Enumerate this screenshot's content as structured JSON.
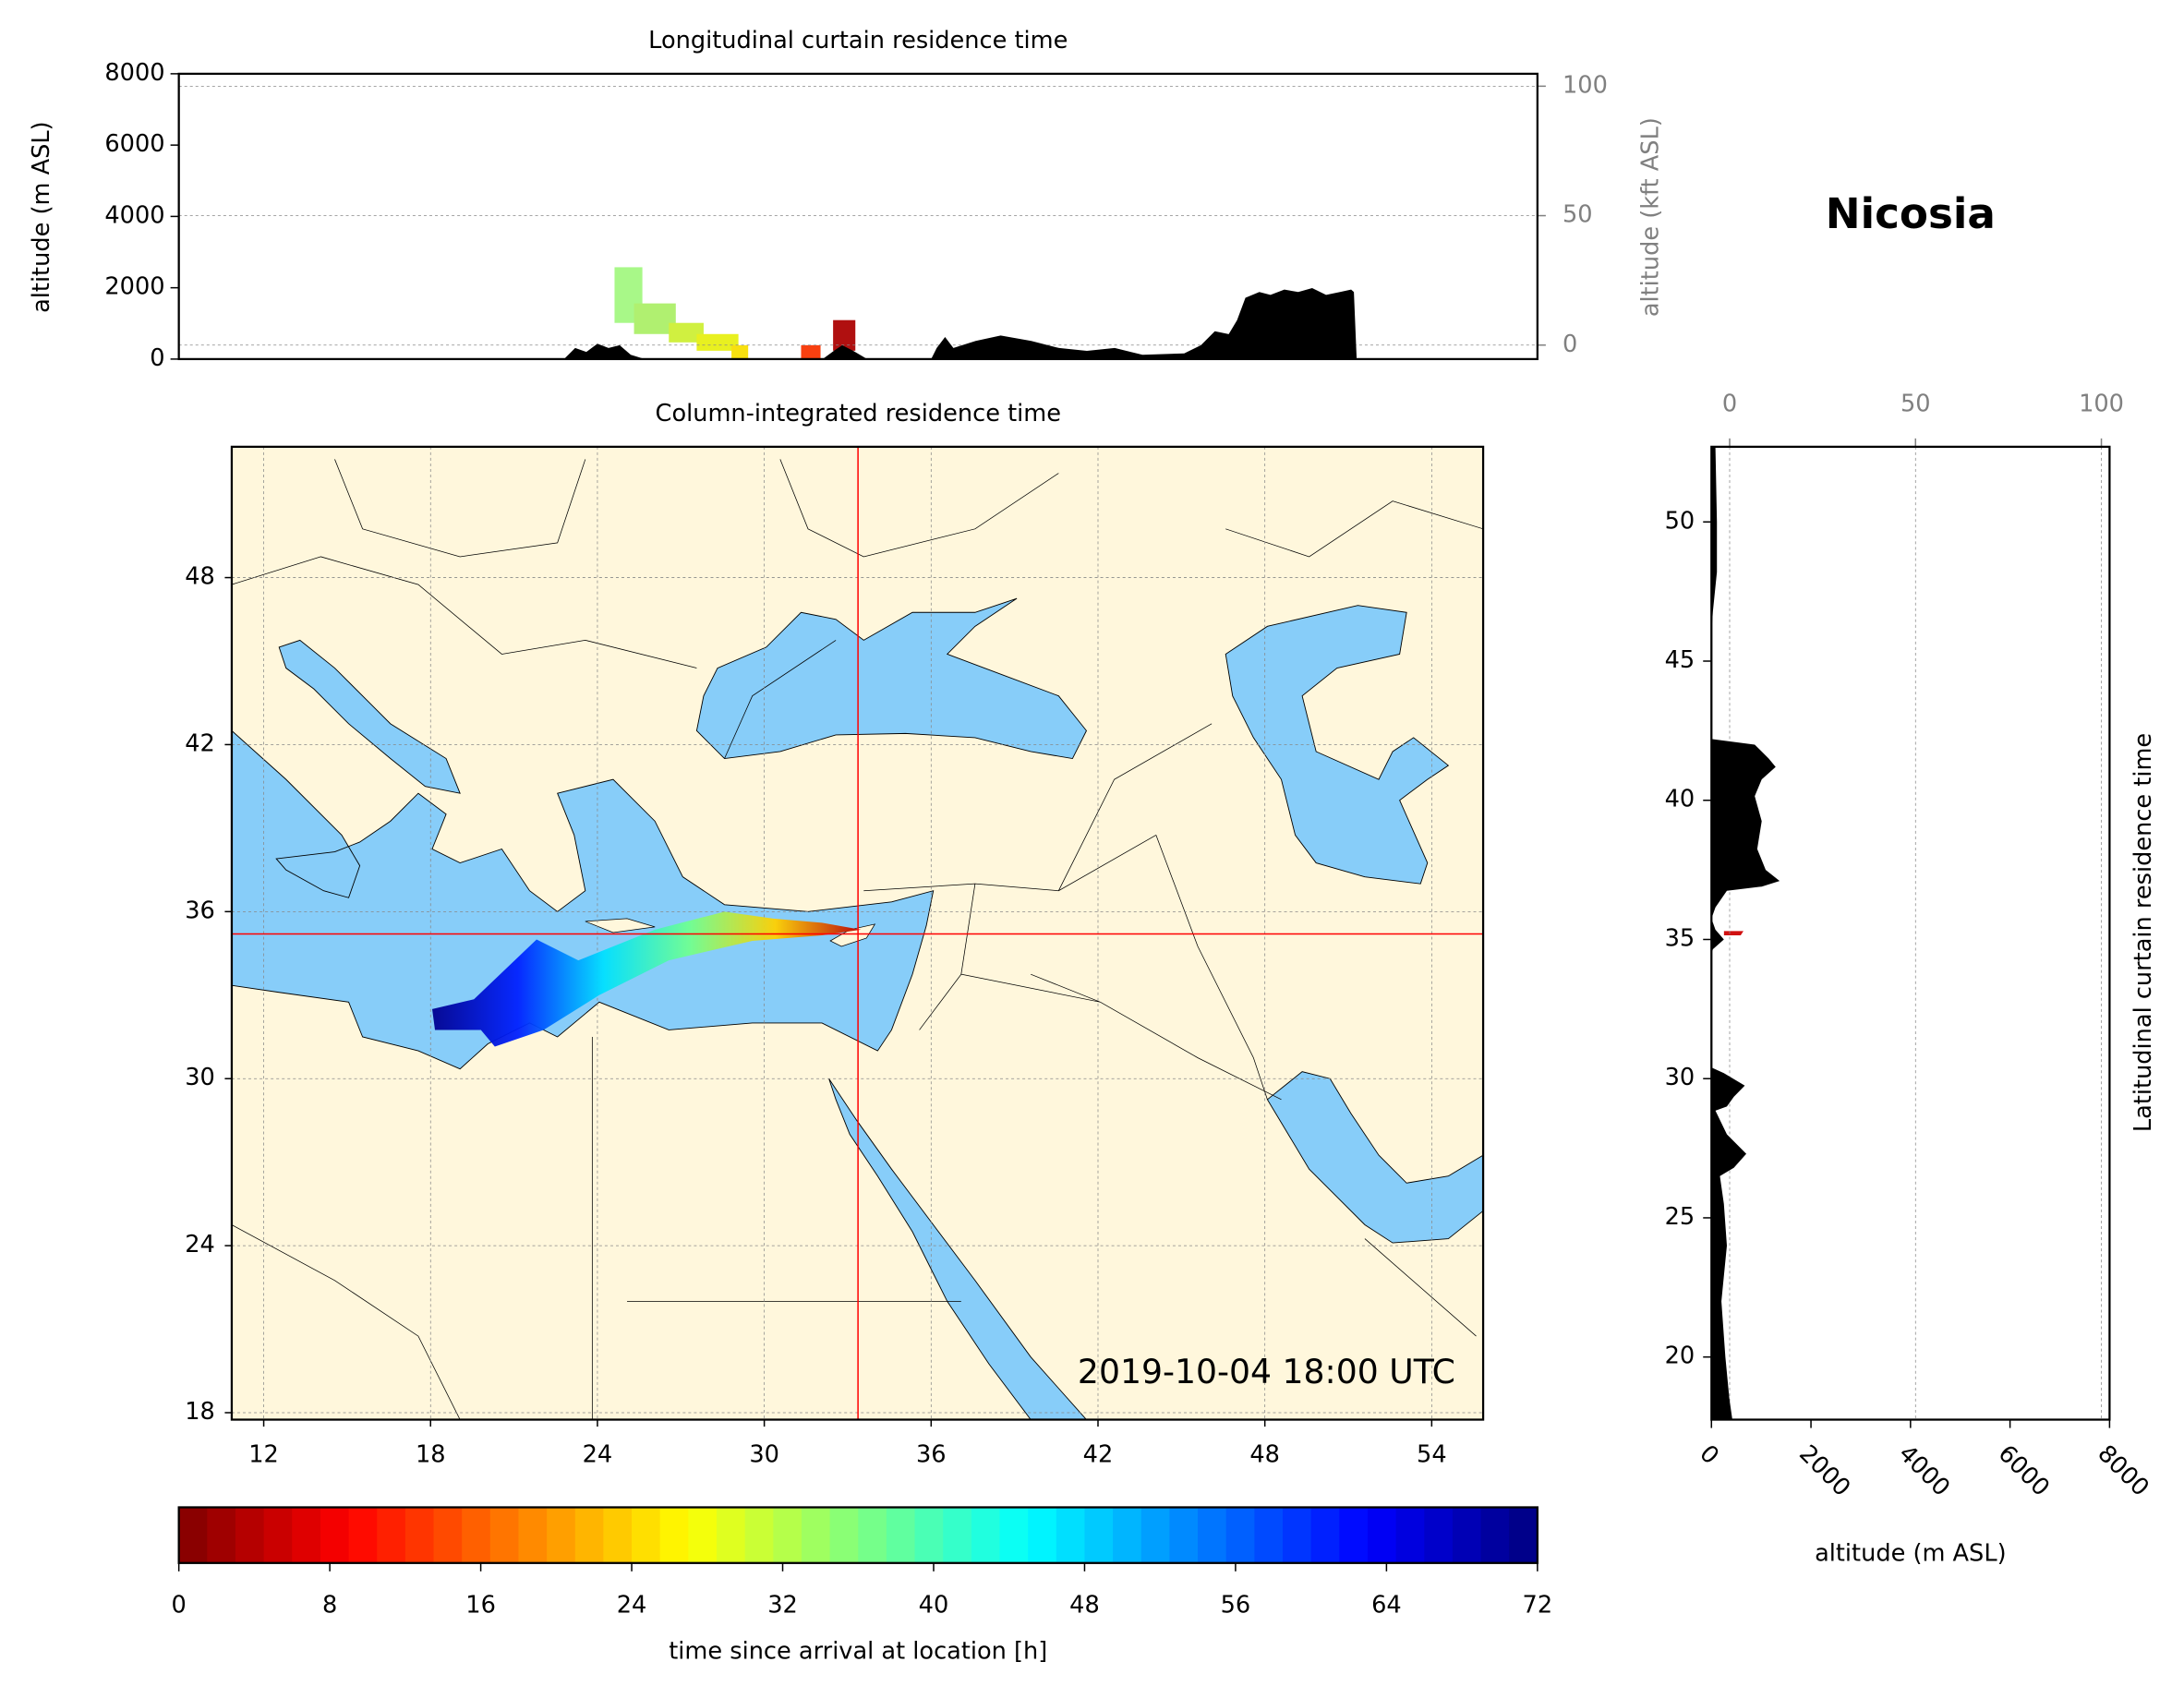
{
  "chart_data": [
    {
      "type": "area",
      "title": "Longitudinal curtain residence time",
      "ylabel": "altitude (m ASL)",
      "y2label": "altitude (kft ASL)",
      "xlim": [
        8.95,
        57.8
      ],
      "ylim": [
        0,
        8000
      ],
      "yticks": [
        0,
        2000,
        4000,
        6000,
        8000
      ],
      "y2lim": [
        -5.4,
        104.8
      ],
      "y2ticks": [
        0,
        50,
        100
      ],
      "grid": true,
      "color": "#000000",
      "x": [
        22.8,
        23.2,
        23.6,
        24.0,
        24.4,
        24.8,
        25.2,
        25.7,
        32.1,
        32.5,
        32.8,
        33.2,
        33.7,
        36.0,
        36.2,
        36.5,
        36.8,
        37.6,
        38.5,
        39.6,
        40.6,
        41.6,
        42.6,
        43.6,
        45.1,
        45.7,
        46.2,
        46.7,
        47.0,
        47.3,
        47.8,
        48.2,
        48.7,
        49.2,
        49.7,
        50.2,
        50.7,
        51.1,
        51.2,
        51.3
      ],
      "values": [
        0,
        310,
        200,
        430,
        310,
        390,
        120,
        0,
        0,
        230,
        390,
        230,
        0,
        0,
        310,
        620,
        310,
        510,
        660,
        510,
        310,
        230,
        310,
        120,
        160,
        390,
        780,
        700,
        1090,
        1720,
        1880,
        1800,
        1950,
        1880,
        1990,
        1800,
        1880,
        1950,
        1880,
        0
      ]
    },
    {
      "type": "map",
      "title": "Column-integrated residence time",
      "annotation": "2019-10-04 18:00 UTC",
      "location": "Nicosia",
      "station": [
        33.37,
        35.2
      ],
      "xlim": [
        10.85,
        55.85
      ],
      "ylim": [
        17.75,
        52.7
      ],
      "xticks": [
        12,
        18,
        24,
        30,
        36,
        42,
        48,
        54
      ],
      "yticks": [
        18,
        24,
        30,
        36,
        42,
        48
      ],
      "grid": true,
      "land_color": "#fff7dc",
      "sea_color": "#87cdf9",
      "marker_color": "#ff0000"
    },
    {
      "type": "area",
      "orientation": "horizontal",
      "ylabel": "Latitudinal curtain residence time",
      "xlabel": "altitude (m ASL)",
      "xlim": [
        0,
        8000
      ],
      "xticks": [
        0,
        2000,
        4000,
        6000,
        8000
      ],
      "x2lim": [
        -4.9,
        102.2
      ],
      "x2ticks": [
        0,
        50,
        100
      ],
      "ylim": [
        17.75,
        52.7
      ],
      "yticks": [
        20,
        25,
        30,
        35,
        40,
        45,
        50
      ],
      "grid": true,
      "color": "#000000",
      "y": [
        52.7,
        50,
        48.2,
        46.8,
        46,
        42.2,
        42.0,
        41.5,
        41.2,
        40.75,
        40.15,
        39.25,
        38.25,
        37.5,
        37.1,
        36.9,
        36.75,
        36.15,
        35.75,
        35.35,
        35.0,
        34.65,
        34.5,
        30.4,
        30.2,
        29.9,
        29.75,
        29.35,
        29.0,
        28.85,
        28.0,
        27.3,
        26.8,
        26.5,
        25.5,
        24,
        22,
        20,
        18.5,
        17.75
      ],
      "values": [
        80,
        110,
        110,
        30,
        0,
        0,
        870,
        1150,
        1290,
        1010,
        870,
        1010,
        920,
        1090,
        1370,
        1010,
        310,
        80,
        0,
        80,
        250,
        30,
        0,
        0,
        250,
        530,
        670,
        450,
        310,
        80,
        310,
        700,
        450,
        170,
        250,
        310,
        200,
        280,
        360,
        420
      ]
    },
    {
      "type": "colorbar",
      "xlabel": "time since arrival at location [h]",
      "xlim": [
        0,
        72
      ],
      "xticks": [
        0,
        8,
        16,
        24,
        32,
        40,
        48,
        56,
        64,
        72
      ],
      "colormap": "jet_r"
    }
  ]
}
